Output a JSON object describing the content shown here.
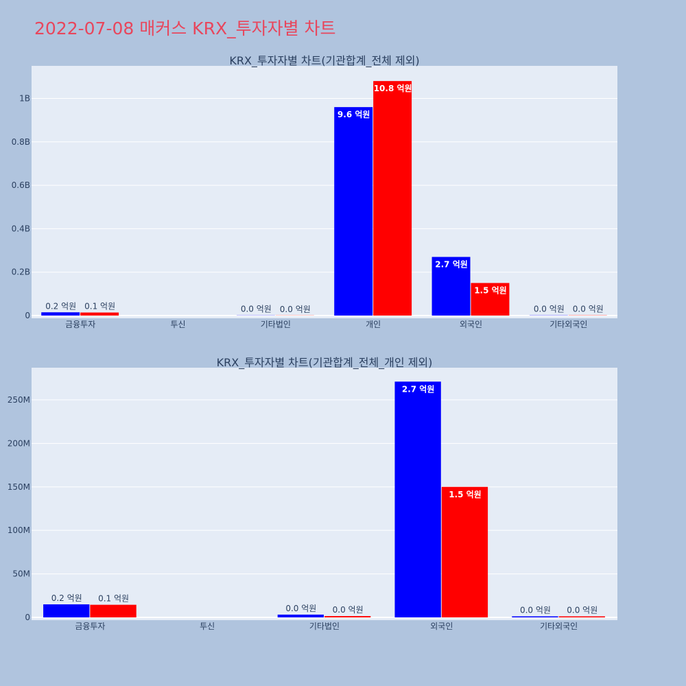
{
  "page": {
    "title": "2022-07-08 매커스 KRX_투자자별 차트",
    "background": "#b0c4de",
    "title_color": "#e8465c",
    "plot_background": "#e5ecf6",
    "grid_color": "#ffffff",
    "text_color": "#2a3f5f"
  },
  "chart_data": [
    {
      "type": "bar",
      "title": "KRX_투자자별 차트(기관합계_전체 제외)",
      "categories": [
        "금융투자",
        "투신",
        "기타법인",
        "개인",
        "외국인",
        "기타외국인"
      ],
      "series": [
        {
          "color": "#0000ff",
          "values": [
            15000000,
            0,
            800000,
            960000000,
            270000000,
            1000000
          ],
          "labels": [
            "0.2 억원",
            "",
            "0.0 억원",
            "9.6 억원",
            "2.7 억원",
            "0.0 억원"
          ]
        },
        {
          "color": "#ff0000",
          "values": [
            14000000,
            0,
            700000,
            1080000000,
            150000000,
            1000000
          ],
          "labels": [
            "0.1 억원",
            "",
            "0.0 억원",
            "10.8 억원",
            "1.5 억원",
            "0.0 억원"
          ]
        }
      ],
      "yticks": [
        0,
        200000000,
        400000000,
        600000000,
        800000000,
        1000000000
      ],
      "ytick_labels": [
        "0",
        "0.2B",
        "0.4B",
        "0.6B",
        "0.8B",
        "1B"
      ],
      "ylim": [
        0,
        1150000000
      ],
      "grid": true
    },
    {
      "type": "bar",
      "title": "KRX_투자자별 차트(기관합계_전체_개인 제외)",
      "categories": [
        "금융투자",
        "투신",
        "기타법인",
        "외국인",
        "기타외국인"
      ],
      "series": [
        {
          "color": "#0000ff",
          "values": [
            15000000,
            0,
            3200000,
            271000000,
            1200000
          ],
          "labels": [
            "0.2 억원",
            "",
            "0.0 억원",
            "2.7 억원",
            "0.0 억원"
          ]
        },
        {
          "color": "#ff0000",
          "values": [
            14500000,
            0,
            1500000,
            150000000,
            1200000
          ],
          "labels": [
            "0.1 억원",
            "",
            "0.0 억원",
            "1.5 억원",
            "0.0 억원"
          ]
        }
      ],
      "yticks": [
        0,
        50000000,
        100000000,
        150000000,
        200000000,
        250000000
      ],
      "ytick_labels": [
        "0",
        "50M",
        "100M",
        "150M",
        "200M",
        "250M"
      ],
      "ylim": [
        0,
        287000000
      ],
      "grid": true
    }
  ]
}
